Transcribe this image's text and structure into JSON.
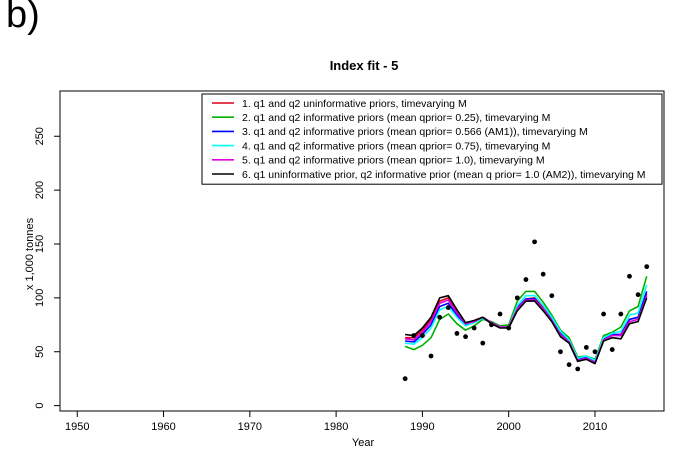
{
  "panel_label": "b)",
  "chart_data": {
    "type": "line",
    "title": "Index fit - 5",
    "xlabel": "Year",
    "ylabel": "x 1,000 tonnes",
    "xlim": [
      1948,
      2018
    ],
    "ylim": [
      -5,
      292
    ],
    "xticks": [
      1950,
      1960,
      1970,
      1980,
      1990,
      2000,
      2010
    ],
    "yticks": [
      0,
      50,
      100,
      150,
      200,
      250
    ],
    "grid": false,
    "legend_position": "top-right",
    "observed": {
      "x": [
        1988,
        1989,
        1990,
        1991,
        1992,
        1993,
        1994,
        1995,
        1996,
        1997,
        1998,
        1999,
        2000,
        2001,
        2002,
        2003,
        2004,
        2005,
        2006,
        2007,
        2008,
        2009,
        2010,
        2011,
        2012,
        2013,
        2014,
        2015,
        2016
      ],
      "y": [
        25,
        65,
        65,
        46,
        82,
        91,
        67,
        64,
        72,
        58,
        75,
        85,
        72,
        100,
        117,
        152,
        122,
        102,
        50,
        38,
        34,
        54,
        50,
        85,
        52,
        85,
        120,
        103,
        129
      ]
    },
    "series": [
      {
        "name": "1. q1 and q2 uninformative priors, timevarying M",
        "color": "#e0001a",
        "x": [
          1988,
          1989,
          1990,
          1991,
          1992,
          1993,
          1994,
          1995,
          1996,
          1997,
          1998,
          1999,
          2000,
          2001,
          2002,
          2003,
          2004,
          2005,
          2006,
          2007,
          2008,
          2009,
          2010,
          2011,
          2012,
          2013,
          2014,
          2015,
          2016
        ],
        "y": [
          63,
          63,
          70,
          80,
          97,
          100,
          88,
          76,
          79,
          82,
          77,
          73,
          73,
          90,
          99,
          100,
          92,
          80,
          68,
          60,
          43,
          45,
          40,
          62,
          66,
          66,
          80,
          82,
          104
        ]
      },
      {
        "name": "2. q1 and q2 informative priors (mean qprior= 0.25), timevarying M",
        "color": "#00b000",
        "x": [
          1988,
          1989,
          1990,
          1991,
          1992,
          1993,
          1994,
          1995,
          1996,
          1997,
          1998,
          1999,
          2000,
          2001,
          2002,
          2003,
          2004,
          2005,
          2006,
          2007,
          2008,
          2009,
          2010,
          2011,
          2012,
          2013,
          2014,
          2015,
          2016
        ],
        "y": [
          55,
          52,
          56,
          63,
          80,
          85,
          76,
          70,
          74,
          80,
          78,
          74,
          75,
          97,
          106,
          106,
          96,
          84,
          70,
          63,
          45,
          46,
          43,
          65,
          68,
          73,
          88,
          92,
          120
        ]
      },
      {
        "name": "3. q1 and q2 informative priors (mean qprior= 0.566 (AM1)), timevarying M",
        "color": "#0000ff",
        "x": [
          1988,
          1989,
          1990,
          1991,
          1992,
          1993,
          1994,
          1995,
          1996,
          1997,
          1998,
          1999,
          2000,
          2001,
          2002,
          2003,
          2004,
          2005,
          2006,
          2007,
          2008,
          2009,
          2010,
          2011,
          2012,
          2013,
          2014,
          2015,
          2016
        ],
        "y": [
          60,
          59,
          66,
          75,
          92,
          95,
          84,
          75,
          78,
          82,
          77,
          73,
          73,
          91,
          99,
          99,
          90,
          80,
          67,
          60,
          43,
          45,
          41,
          62,
          66,
          66,
          80,
          82,
          106
        ]
      },
      {
        "name": "4. q1 and q2 informative priors (mean qprior= 0.75), timevarying M",
        "color": "#00ffff",
        "x": [
          1988,
          1989,
          1990,
          1991,
          1992,
          1993,
          1994,
          1995,
          1996,
          1997,
          1998,
          1999,
          2000,
          2001,
          2002,
          2003,
          2004,
          2005,
          2006,
          2007,
          2008,
          2009,
          2010,
          2011,
          2012,
          2013,
          2014,
          2015,
          2016
        ],
        "y": [
          58,
          57,
          63,
          72,
          89,
          92,
          82,
          74,
          77,
          81,
          77,
          73,
          73,
          93,
          102,
          102,
          93,
          82,
          69,
          61,
          44,
          46,
          42,
          63,
          67,
          69,
          84,
          86,
          112
        ]
      },
      {
        "name": "5. q1 and q2 informative priors (mean qprior= 1.0), timevarying M",
        "color": "#e000e0",
        "x": [
          1988,
          1989,
          1990,
          1991,
          1992,
          1993,
          1994,
          1995,
          1996,
          1997,
          1998,
          1999,
          2000,
          2001,
          2002,
          2003,
          2004,
          2005,
          2006,
          2007,
          2008,
          2009,
          2010,
          2011,
          2012,
          2013,
          2014,
          2015,
          2016
        ],
        "y": [
          62,
          61,
          68,
          78,
          95,
          98,
          86,
          76,
          78,
          82,
          77,
          73,
          73,
          90,
          98,
          98,
          90,
          79,
          66,
          59,
          42,
          44,
          40,
          61,
          65,
          65,
          78,
          80,
          102
        ]
      },
      {
        "name": "6. q1 uninformative prior, q2 informative prior (mean q prior= 1.0 (AM2)), timevarying M",
        "color": "#000000",
        "x": [
          1988,
          1989,
          1990,
          1991,
          1992,
          1993,
          1994,
          1995,
          1996,
          1997,
          1998,
          1999,
          2000,
          2001,
          2002,
          2003,
          2004,
          2005,
          2006,
          2007,
          2008,
          2009,
          2010,
          2011,
          2012,
          2013,
          2014,
          2015,
          2016
        ],
        "y": [
          66,
          65,
          72,
          82,
          100,
          102,
          89,
          77,
          79,
          82,
          76,
          72,
          72,
          88,
          97,
          97,
          88,
          78,
          64,
          58,
          41,
          43,
          39,
          60,
          63,
          62,
          76,
          78,
          100
        ]
      }
    ]
  }
}
